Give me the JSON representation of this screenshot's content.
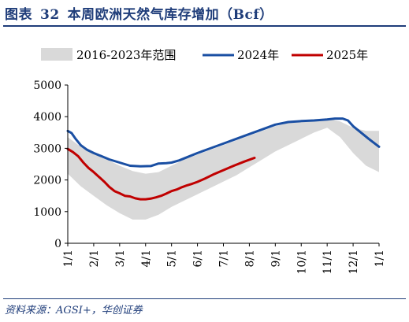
{
  "header": {
    "figure_label": "图表",
    "figure_number": "32",
    "title": "本周欧洲天然气库存增加（Bcf）"
  },
  "footer": {
    "source": "资料来源：AGSI+，华创证券"
  },
  "colors": {
    "band": "#d9d9d9",
    "series_2024": "#1a4fa3",
    "series_2025": "#c00000",
    "text_accent": "#1f3d7a"
  },
  "chart_data": {
    "type": "line",
    "title": "本周欧洲天然气库存增加（Bcf）",
    "xlabel": "",
    "ylabel": "",
    "ylim": [
      0,
      5000
    ],
    "yticks": [
      0,
      1000,
      2000,
      3000,
      4000,
      5000
    ],
    "x_ticks": [
      "1/1",
      "2/1",
      "3/1",
      "4/1",
      "5/1",
      "6/1",
      "7/1",
      "8/1",
      "9/1",
      "10/1",
      "11/1",
      "12/1",
      "1/1"
    ],
    "x_range_months": [
      0,
      12
    ],
    "legend": [
      "2016-2023年范围",
      "2024年",
      "2025年"
    ],
    "legend_position": "top",
    "grid": false,
    "band": {
      "name": "2016-2023年范围",
      "x": [
        0,
        0.5,
        1,
        1.5,
        2,
        2.5,
        3,
        3.5,
        4,
        4.5,
        5,
        5.5,
        6,
        6.5,
        7,
        7.5,
        8,
        8.5,
        9,
        9.5,
        10,
        10.5,
        11,
        11.5,
        12
      ],
      "upper": [
        3350,
        3050,
        2850,
        2650,
        2450,
        2280,
        2200,
        2250,
        2450,
        2650,
        2800,
        2950,
        3100,
        3250,
        3400,
        3550,
        3700,
        3800,
        3880,
        3920,
        3950,
        3850,
        3650,
        3550,
        3550
      ],
      "lower": [
        2200,
        1800,
        1500,
        1200,
        950,
        750,
        750,
        900,
        1150,
        1350,
        1550,
        1750,
        1950,
        2150,
        2400,
        2650,
        2900,
        3100,
        3300,
        3500,
        3650,
        3350,
        2850,
        2450,
        2250
      ]
    },
    "series": [
      {
        "name": "2024年",
        "x": [
          0,
          0.15,
          0.3,
          0.5,
          0.75,
          1,
          1.3,
          1.6,
          2,
          2.4,
          2.8,
          3.2,
          3.5,
          3.8,
          4,
          4.3,
          4.6,
          5,
          5.5,
          6,
          6.5,
          7,
          7.5,
          8,
          8.5,
          9,
          9.5,
          10,
          10.3,
          10.6,
          10.8,
          11,
          11.3,
          11.6,
          12
        ],
        "values": [
          3550,
          3480,
          3300,
          3100,
          2950,
          2850,
          2750,
          2650,
          2550,
          2450,
          2430,
          2440,
          2520,
          2530,
          2550,
          2620,
          2720,
          2850,
          3000,
          3150,
          3300,
          3450,
          3600,
          3750,
          3830,
          3860,
          3880,
          3910,
          3940,
          3940,
          3880,
          3700,
          3500,
          3300,
          3050
        ]
      },
      {
        "name": "2025年",
        "x": [
          0,
          0.2,
          0.4,
          0.6,
          0.8,
          1,
          1.2,
          1.4,
          1.6,
          1.8,
          2,
          2.2,
          2.4,
          2.6,
          2.8,
          3,
          3.2,
          3.4,
          3.6,
          3.8,
          4,
          4.2,
          4.4,
          4.6,
          4.8,
          5,
          5.3,
          5.6,
          6,
          6.4,
          6.8,
          7.2
        ],
        "values": [
          2980,
          2880,
          2750,
          2550,
          2380,
          2250,
          2100,
          1950,
          1780,
          1650,
          1580,
          1500,
          1480,
          1420,
          1390,
          1390,
          1410,
          1450,
          1500,
          1570,
          1650,
          1700,
          1770,
          1830,
          1880,
          1940,
          2050,
          2170,
          2310,
          2450,
          2580,
          2700
        ]
      }
    ]
  }
}
